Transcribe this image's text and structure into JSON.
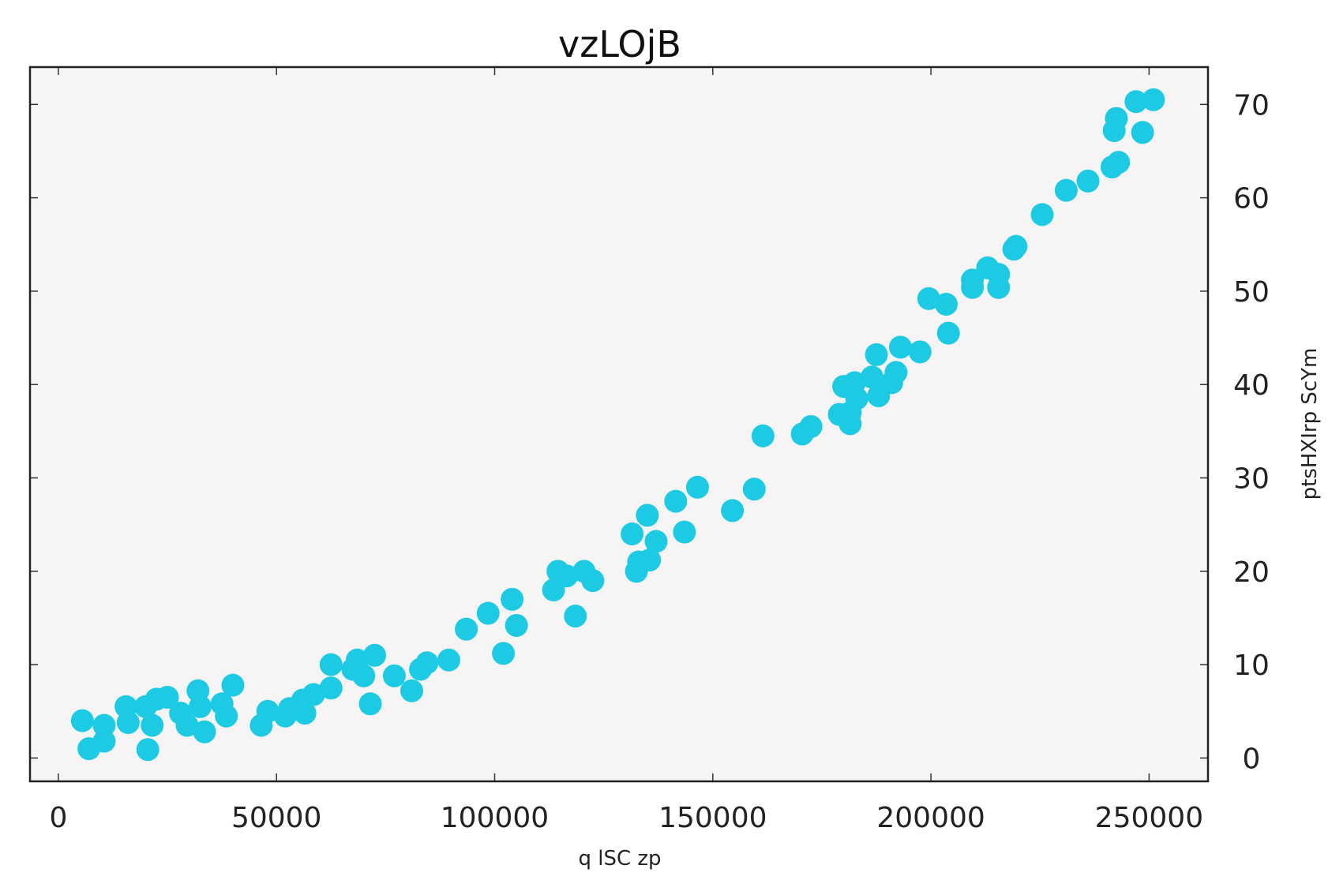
{
  "chart_data": {
    "type": "scatter",
    "title": "vzLOjB",
    "xlabel": "q  lSC  zp",
    "ylabel": "ptsHXIrp ScYm",
    "xlim": [
      -6500,
      263500
    ],
    "ylim": [
      -2.5,
      74
    ],
    "x_ticks": [
      0,
      50000,
      100000,
      150000,
      200000,
      250000
    ],
    "y_ticks": [
      0,
      10,
      20,
      30,
      40,
      50,
      60,
      70
    ],
    "y_axis_side": "right",
    "grid": false,
    "legend": "none",
    "colors": {
      "marker": "#1ccbe3",
      "plot_background": "#f6f4f5",
      "frame": "#222222"
    },
    "points": [
      [
        5500,
        4.0
      ],
      [
        7000,
        1.0
      ],
      [
        10500,
        3.5
      ],
      [
        10500,
        1.8
      ],
      [
        15500,
        5.5
      ],
      [
        16000,
        3.8
      ],
      [
        20000,
        5.5
      ],
      [
        20500,
        0.9
      ],
      [
        21500,
        3.5
      ],
      [
        22500,
        6.3
      ],
      [
        25000,
        6.5
      ],
      [
        28000,
        4.8
      ],
      [
        29500,
        3.5
      ],
      [
        32000,
        7.2
      ],
      [
        32500,
        5.5
      ],
      [
        33500,
        2.8
      ],
      [
        37500,
        5.8
      ],
      [
        38500,
        4.5
      ],
      [
        40000,
        7.8
      ],
      [
        46500,
        3.5
      ],
      [
        48000,
        5.0
      ],
      [
        52000,
        4.5
      ],
      [
        53000,
        5.3
      ],
      [
        56000,
        6.2
      ],
      [
        56500,
        4.8
      ],
      [
        58500,
        6.8
      ],
      [
        62500,
        7.5
      ],
      [
        62500,
        10.0
      ],
      [
        67500,
        9.5
      ],
      [
        68500,
        10.5
      ],
      [
        70000,
        8.8
      ],
      [
        71500,
        5.8
      ],
      [
        72500,
        11.0
      ],
      [
        77000,
        8.8
      ],
      [
        81000,
        7.2
      ],
      [
        83000,
        9.5
      ],
      [
        84500,
        10.2
      ],
      [
        89500,
        10.5
      ],
      [
        93500,
        13.8
      ],
      [
        98500,
        15.5
      ],
      [
        102000,
        11.2
      ],
      [
        104000,
        17.0
      ],
      [
        105000,
        14.2
      ],
      [
        113500,
        18.0
      ],
      [
        114500,
        20.0
      ],
      [
        116500,
        19.5
      ],
      [
        118500,
        15.2
      ],
      [
        120500,
        20.0
      ],
      [
        122500,
        19.0
      ],
      [
        131500,
        24.0
      ],
      [
        132500,
        20.0
      ],
      [
        133000,
        21.0
      ],
      [
        135000,
        26.0
      ],
      [
        135500,
        21.2
      ],
      [
        137000,
        23.2
      ],
      [
        141500,
        27.5
      ],
      [
        143500,
        24.2
      ],
      [
        146500,
        29.0
      ],
      [
        154500,
        26.5
      ],
      [
        159500,
        28.8
      ],
      [
        161500,
        34.5
      ],
      [
        170500,
        34.7
      ],
      [
        172500,
        35.5
      ],
      [
        179000,
        36.8
      ],
      [
        180000,
        39.8
      ],
      [
        181500,
        37.0
      ],
      [
        181500,
        35.8
      ],
      [
        182500,
        40.2
      ],
      [
        183000,
        38.5
      ],
      [
        186500,
        40.8
      ],
      [
        187500,
        43.2
      ],
      [
        188000,
        38.8
      ],
      [
        191000,
        40.2
      ],
      [
        192000,
        41.3
      ],
      [
        193000,
        44.0
      ],
      [
        197500,
        43.5
      ],
      [
        199500,
        49.2
      ],
      [
        203500,
        48.6
      ],
      [
        204000,
        45.5
      ],
      [
        209500,
        51.2
      ],
      [
        209500,
        50.4
      ],
      [
        213000,
        52.5
      ],
      [
        215500,
        51.8
      ],
      [
        215500,
        50.4
      ],
      [
        219000,
        54.5
      ],
      [
        219500,
        54.8
      ],
      [
        225500,
        58.2
      ],
      [
        231000,
        60.8
      ],
      [
        236000,
        61.8
      ],
      [
        241500,
        63.3
      ],
      [
        242000,
        67.2
      ],
      [
        242500,
        68.5
      ],
      [
        243000,
        63.8
      ],
      [
        247000,
        70.3
      ],
      [
        248500,
        67.0
      ],
      [
        251000,
        70.5
      ]
    ]
  }
}
